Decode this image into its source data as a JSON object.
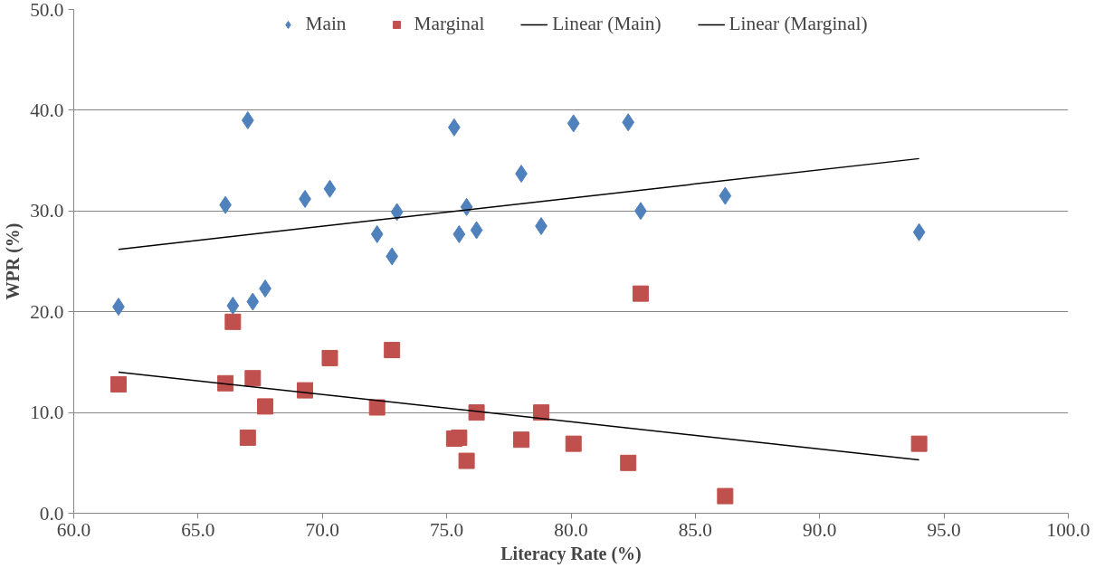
{
  "chart_data": {
    "type": "scatter",
    "xlabel": "Literacy Rate (%)",
    "ylabel": "WPR (%)",
    "xlim": [
      60,
      100
    ],
    "ylim": [
      0,
      50
    ],
    "xticks": [
      {
        "value": 60,
        "label": "60.0"
      },
      {
        "value": 65,
        "label": "65.0"
      },
      {
        "value": 70,
        "label": "70.0"
      },
      {
        "value": 75,
        "label": "75.0"
      },
      {
        "value": 80,
        "label": "80.0"
      },
      {
        "value": 85,
        "label": "85.0"
      },
      {
        "value": 90,
        "label": "90.0"
      },
      {
        "value": 95,
        "label": "95.0"
      },
      {
        "value": 100,
        "label": "100.0"
      }
    ],
    "yticks": [
      {
        "value": 0,
        "label": "0.0"
      },
      {
        "value": 10,
        "label": "10.0"
      },
      {
        "value": 20,
        "label": "20.0"
      },
      {
        "value": 30,
        "label": "30.0"
      },
      {
        "value": 40,
        "label": "40.0"
      },
      {
        "value": 50,
        "label": "50.0"
      }
    ],
    "grid": "y",
    "legend": "top",
    "series": [
      {
        "name": "Main",
        "color": "#4f81bd",
        "marker": "diamond",
        "x": [
          61.8,
          66.1,
          66.4,
          67.0,
          67.2,
          67.7,
          69.3,
          70.3,
          72.2,
          72.8,
          73.0,
          75.3,
          75.5,
          75.8,
          76.2,
          78.0,
          78.8,
          80.1,
          82.3,
          82.8,
          86.2,
          94.0
        ],
        "values": [
          20.5,
          30.6,
          20.6,
          39.0,
          21.0,
          22.3,
          31.2,
          32.2,
          27.7,
          25.5,
          29.9,
          38.3,
          27.7,
          30.4,
          28.1,
          33.7,
          28.5,
          38.7,
          38.8,
          30.0,
          31.5,
          27.9
        ]
      },
      {
        "name": "Marginal",
        "color": "#c0504d",
        "marker": "square",
        "x": [
          61.8,
          66.1,
          66.4,
          67.0,
          67.2,
          67.7,
          69.3,
          70.3,
          72.2,
          72.8,
          75.3,
          75.5,
          75.8,
          76.2,
          78.0,
          78.8,
          80.1,
          82.3,
          82.8,
          86.2,
          94.0
        ],
        "values": [
          12.8,
          12.9,
          19.0,
          7.5,
          13.4,
          10.6,
          12.2,
          15.4,
          10.5,
          16.2,
          7.4,
          7.5,
          5.2,
          10.0,
          7.3,
          10.0,
          6.9,
          5.0,
          21.8,
          1.7,
          6.9
        ]
      },
      {
        "name": "Linear (Main)",
        "type": "line",
        "color": "#000000",
        "x": [
          61.8,
          94.0
        ],
        "values": [
          26.2,
          35.2
        ]
      },
      {
        "name": "Linear (Marginal)",
        "type": "line",
        "color": "#000000",
        "x": [
          61.8,
          94.0
        ],
        "values": [
          14.0,
          5.3
        ]
      }
    ]
  }
}
